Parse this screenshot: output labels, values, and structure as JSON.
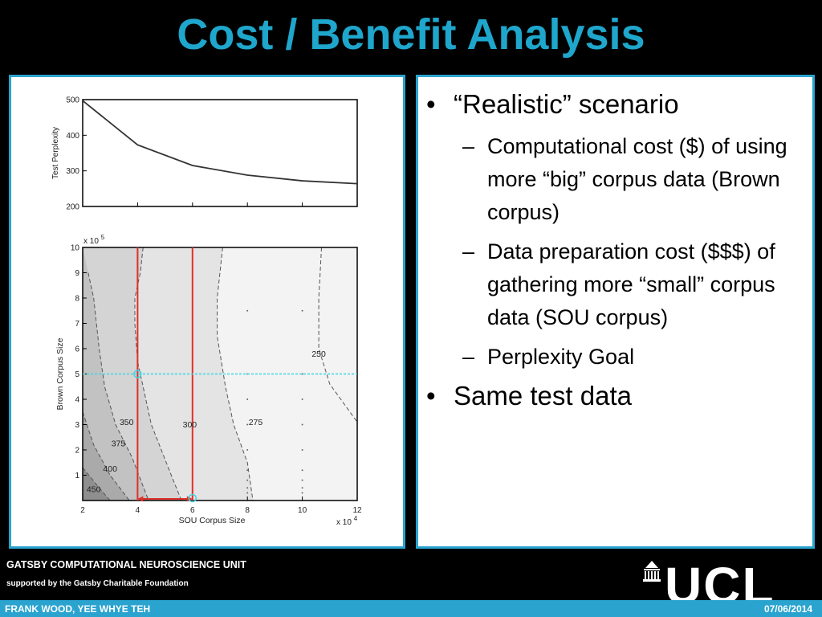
{
  "slide": {
    "title": "Cost / Benefit Analysis"
  },
  "content": {
    "bullets": [
      {
        "text": "“Realistic” scenario",
        "sub": [
          "Computational cost ($) of using more “big” corpus data (Brown corpus)",
          "Data preparation cost ($$$) of gathering more “small” corpus data (SOU corpus)",
          "Perplexity Goal"
        ]
      },
      {
        "text": "Same test data",
        "sub": []
      }
    ]
  },
  "footer": {
    "unit": "GATSBY COMPUTATIONAL NEUROSCIENCE UNIT",
    "support": "supported by the Gatsby Charitable Foundation",
    "authors": "FRANK WOOD, YEE WHYE TEH",
    "date": "07/06/2014",
    "logo_text": "UCL"
  },
  "colors": {
    "accent": "#2aa3cf",
    "title": "#1fa6cc",
    "constraint_line": "#e0302a",
    "crosshair": "#3ed6e6"
  },
  "chart_data": [
    {
      "type": "line",
      "ylabel": "Test Perplexity",
      "xlabel": "",
      "x": [
        2,
        4,
        6,
        8,
        10,
        12
      ],
      "series": [
        {
          "values": [
            497,
            373,
            315,
            288,
            272,
            264
          ]
        }
      ],
      "xlim": [
        2,
        12
      ],
      "ylim": [
        200,
        500
      ],
      "yticks": [
        "500",
        "400",
        "300",
        "200"
      ],
      "grid": false
    },
    {
      "type": "contour",
      "xlabel": "SOU Corpus Size",
      "ylabel": "Brown Corpus Size",
      "x_multiplier": "x 10",
      "x_exponent": "4",
      "y_multiplier": "x 10",
      "y_exponent": "5",
      "xticks": [
        "2",
        "4",
        "6",
        "8",
        "10",
        "12"
      ],
      "yticks": [
        "10",
        "9",
        "8",
        "7",
        "6",
        "5",
        "4",
        "3",
        "2",
        "1"
      ],
      "xlim": [
        2,
        12
      ],
      "ylim": [
        0,
        10
      ],
      "contour_labels": [
        "450",
        "400",
        "375",
        "350",
        "300",
        "275",
        "250"
      ],
      "constraint_lines_x": [
        4,
        6
      ],
      "crosshair_y": 5,
      "goal_point": {
        "x": 4,
        "y": 5
      }
    }
  ]
}
